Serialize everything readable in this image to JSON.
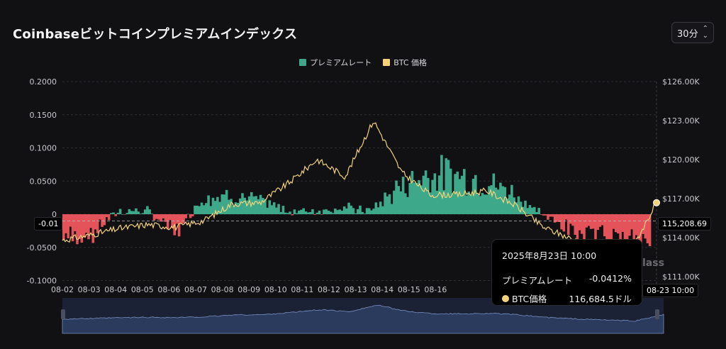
{
  "header": {
    "title": "Coinbaseビットコインプレミアムインデックス",
    "interval_label": "30分"
  },
  "legend": {
    "premium_label": "プレミアムレート",
    "btc_label": "BTC 価格"
  },
  "colors": {
    "premium_positive": "#3ea98a",
    "premium_negative": "#e4525a",
    "btc_line": "#f5d27a",
    "navigator_fill": "#2a3b5e",
    "navigator_line": "#7a8fbf"
  },
  "crosshair": {
    "left_value": "-0.01",
    "right_value": "115,208.69",
    "time_value": "08-23 10:00"
  },
  "tooltip": {
    "time": "2025年8月23日 10:00",
    "premium_label": "プレミアムレート",
    "premium_value": "-0.0412%",
    "btc_label": "BTC価格",
    "btc_value": "116,684.5ドル"
  },
  "watermark": "lass",
  "chart_data": {
    "type": "bar+line",
    "x_tick_labels": [
      "08-02",
      "08-03",
      "08-04",
      "08-05",
      "08-06",
      "08-07",
      "08-08",
      "08-09",
      "08-10",
      "08-11",
      "08-12",
      "08-13",
      "08-14",
      "08-15",
      "08-16"
    ],
    "left_axis": {
      "ticks": [
        "0.2000",
        "0.1500",
        "0.1000",
        "0.0500",
        "0",
        "-0.0500",
        "-0.1000"
      ],
      "range": [
        -0.1,
        0.2
      ]
    },
    "right_axis": {
      "ticks": [
        "$126.00K",
        "$123.00K",
        "$120.00K",
        "$117.00K",
        "$114.00K",
        "$111.00K"
      ],
      "range": [
        111000,
        126000
      ]
    },
    "series": [
      {
        "name": "プレミアムレート",
        "type": "bar",
        "approx_daily_values": [
          -0.04,
          -0.03,
          0.005,
          0.005,
          -0.03,
          0.025,
          0.03,
          0.02,
          0.005,
          0.005,
          0.01,
          0.005,
          0.04,
          0.06,
          0.06,
          0.05,
          0.035,
          0.005,
          -0.025,
          -0.03,
          -0.03,
          -0.04
        ]
      },
      {
        "name": "BTC 価格",
        "type": "line",
        "approx_daily_values": [
          113800,
          114200,
          114700,
          115000,
          114800,
          115300,
          116600,
          116700,
          118200,
          120000,
          118700,
          123000,
          119000,
          117300,
          117300,
          117600,
          116500,
          114800,
          113900,
          113200,
          112600,
          116684
        ]
      }
    ]
  }
}
